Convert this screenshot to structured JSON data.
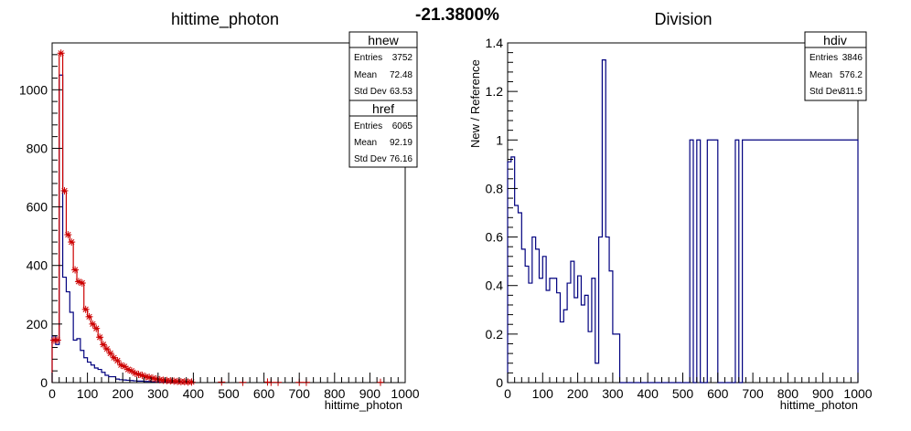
{
  "page": {
    "difference_label": "-21.3800%"
  },
  "chart_data": [
    {
      "type": "histogram",
      "title": "hittime_photon",
      "xlabel": "hittime_photon",
      "ylabel": "",
      "xlim": [
        0,
        1000
      ],
      "ylim": [
        0,
        1160
      ],
      "x_ticks": [
        "0",
        "100",
        "200",
        "300",
        "400",
        "500",
        "600",
        "700",
        "800",
        "900",
        "1000"
      ],
      "y_ticks": [
        "0",
        "200",
        "400",
        "600",
        "800",
        "1000"
      ],
      "bin_width": 10,
      "series": [
        {
          "name": "hnew",
          "color": "#00007f",
          "values": [
            160,
            130,
            1050,
            360,
            310,
            240,
            145,
            150,
            110,
            85,
            70,
            60,
            50,
            45,
            35,
            25,
            20,
            20,
            12,
            10,
            9,
            8,
            7,
            6,
            5,
            5,
            4,
            4,
            3,
            3,
            2,
            2,
            2,
            2,
            1,
            1,
            1,
            1,
            1,
            1
          ]
        },
        {
          "name": "href",
          "color": "#cc0000",
          "values": [
            145,
            145,
            1125,
            655,
            505,
            480,
            385,
            345,
            340,
            250,
            225,
            200,
            185,
            155,
            130,
            115,
            100,
            85,
            75,
            60,
            55,
            45,
            40,
            32,
            28,
            25,
            20,
            18,
            15,
            12,
            10,
            8,
            7,
            6,
            5,
            4,
            3,
            3,
            2,
            2
          ]
        }
      ],
      "stats": [
        {
          "name": "hnew",
          "rows": [
            {
              "label": "Entries",
              "value": "3752"
            },
            {
              "label": "Mean",
              "value": "72.48"
            },
            {
              "label": "Std Dev",
              "value": "63.53"
            }
          ]
        },
        {
          "name": "href",
          "rows": [
            {
              "label": "Entries",
              "value": "6065"
            },
            {
              "label": "Mean",
              "value": "92.19"
            },
            {
              "label": "Std Dev",
              "value": "76.16"
            }
          ]
        }
      ]
    },
    {
      "type": "histogram",
      "title": "Division",
      "xlabel": "hittime_photon",
      "ylabel": "New / Reference",
      "xlim": [
        0,
        1000
      ],
      "ylim": [
        0,
        1.4
      ],
      "x_ticks": [
        "0",
        "100",
        "200",
        "300",
        "400",
        "500",
        "600",
        "700",
        "800",
        "900",
        "1000"
      ],
      "y_ticks": [
        "0",
        "0.2",
        "0.4",
        "0.6",
        "0.8",
        "1",
        "1.2",
        "1.4"
      ],
      "bin_width": 10,
      "series": [
        {
          "name": "hdiv",
          "color": "#00007f",
          "values": [
            0.91,
            0.93,
            0.73,
            0.7,
            0.55,
            0.48,
            0.41,
            0.6,
            0.55,
            0.43,
            0.52,
            0.38,
            0.43,
            0.43,
            0.37,
            0.25,
            0.3,
            0.41,
            0.5,
            0.35,
            0.44,
            0.32,
            0.36,
            0.21,
            0.43,
            0.08,
            0.6,
            1.33,
            0.6,
            0.46,
            0.2,
            0.2,
            0,
            0,
            0,
            0,
            0,
            0,
            0,
            0,
            0,
            0,
            0,
            0,
            0,
            0,
            0,
            0,
            0,
            0,
            0,
            0,
            1,
            0,
            1,
            0,
            0,
            1,
            1,
            1,
            0,
            0,
            0,
            0,
            0,
            1,
            0,
            1,
            1,
            1,
            1,
            1,
            1,
            1,
            1,
            1,
            1,
            1,
            1,
            1,
            1,
            1,
            1,
            1,
            1,
            1,
            1,
            1,
            1,
            1,
            1,
            1,
            1,
            1,
            1,
            1,
            1,
            1,
            1,
            1
          ]
        }
      ],
      "stats": [
        {
          "name": "hdiv",
          "rows": [
            {
              "label": "Entries",
              "value": "3846"
            },
            {
              "label": "Mean",
              "value": "576.2"
            },
            {
              "label": "Std Dev",
              "value": "311.5"
            }
          ]
        }
      ]
    }
  ]
}
